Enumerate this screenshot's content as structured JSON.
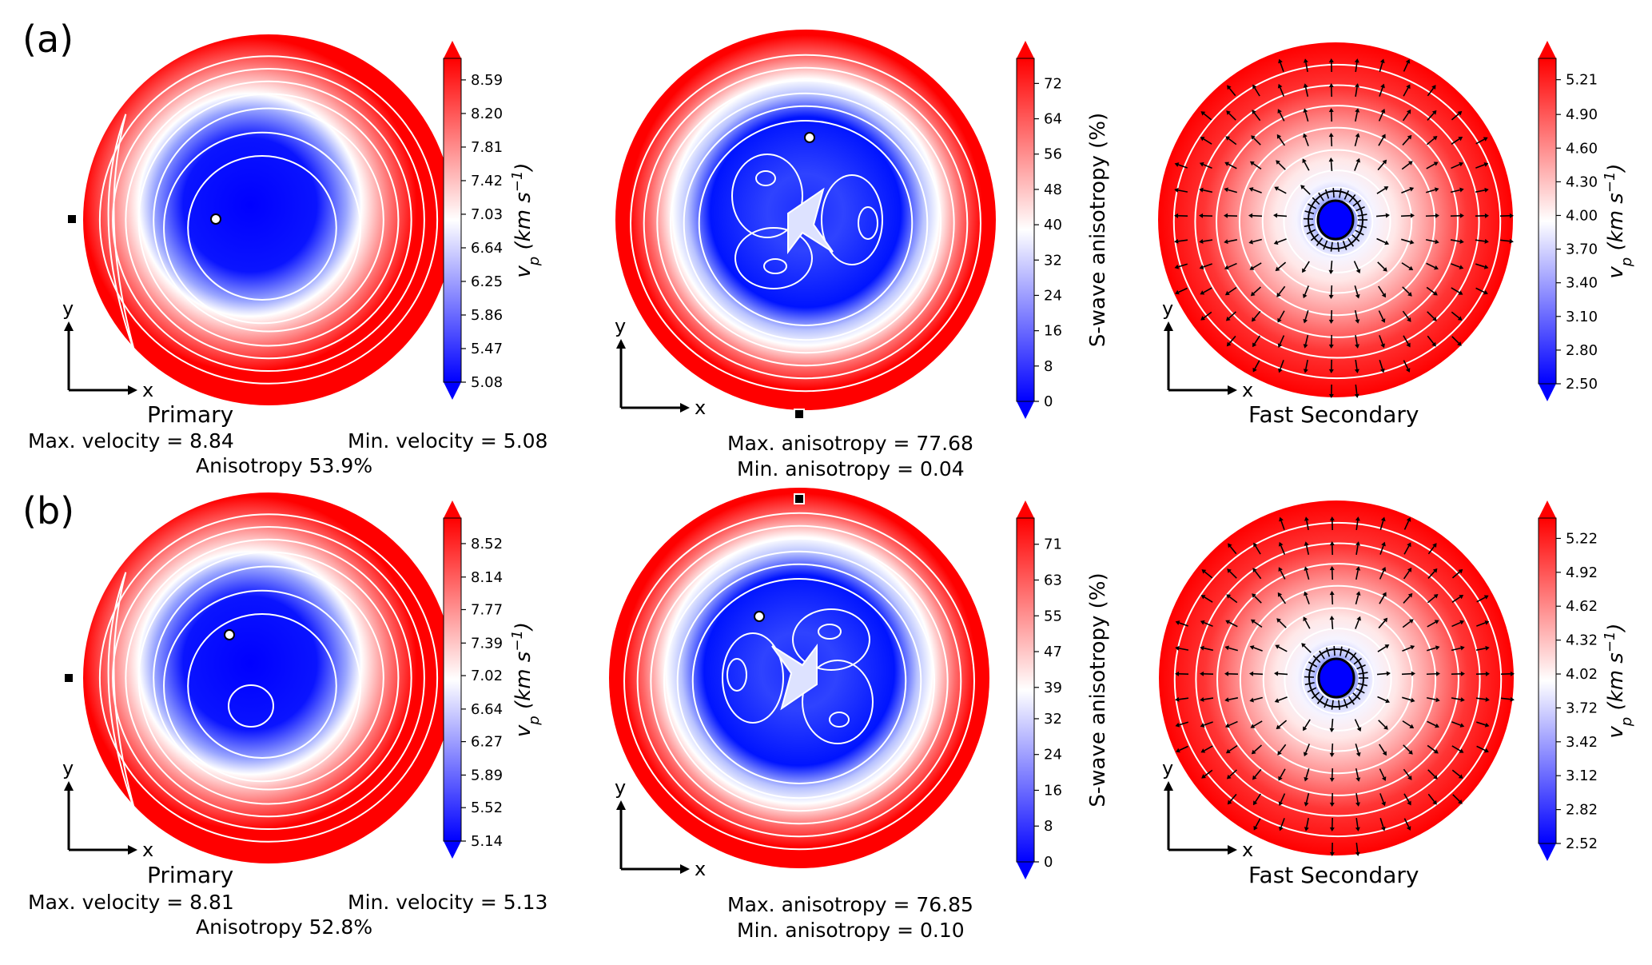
{
  "panels": [
    {
      "label": "(a)",
      "primary": {
        "title": "Primary",
        "max_text": "Max. velocity = 8.84",
        "min_text": "Min. velocity = 5.08",
        "aniso_text": "Anisotropy 53.9%"
      },
      "swave": {
        "max_text": "Max. anisotropy = 77.68",
        "min_text": "Min. anisotropy = 0.04"
      },
      "fast": {
        "title": "Fast Secondary"
      }
    },
    {
      "label": "(b)",
      "primary": {
        "title": "Primary",
        "max_text": "Max. velocity = 8.81",
        "min_text": "Min. velocity = 5.13",
        "aniso_text": "Anisotropy 52.8%"
      },
      "swave": {
        "max_text": "Max. anisotropy = 76.85",
        "min_text": "Min. anisotropy = 0.10"
      },
      "fast": {
        "title": "Fast Secondary"
      }
    }
  ],
  "axes_labels": {
    "x": "x",
    "y": "y"
  },
  "colors": {
    "low": "#0000ff",
    "mid": "#ffffff",
    "high": "#ff0000",
    "contour": "#ffffff",
    "arrow": "#000000"
  },
  "chart_data": [
    {
      "type": "heatmap",
      "panel": "(a)",
      "name": "Primary",
      "projection": "pole figure",
      "max_velocity": 8.84,
      "min_velocity": 5.08,
      "anisotropy_percent": 53.9,
      "colorbar": {
        "label": "v_p (km s^-1)",
        "range": [
          5.08,
          8.84
        ],
        "ticks": [
          "5.08",
          "5.47",
          "5.86",
          "6.25",
          "6.64",
          "7.03",
          "7.42",
          "7.81",
          "8.20",
          "8.59"
        ]
      }
    },
    {
      "type": "heatmap",
      "panel": "(a)",
      "name": "S-wave anisotropy",
      "projection": "pole figure",
      "max_anisotropy": 77.68,
      "min_anisotropy": 0.04,
      "colorbar": {
        "label": "S-wave anisotropy (%)",
        "range": [
          0,
          77.68
        ],
        "ticks": [
          "0",
          "8",
          "16",
          "24",
          "32",
          "40",
          "48",
          "56",
          "64",
          "72"
        ]
      }
    },
    {
      "type": "heatmap",
      "panel": "(a)",
      "name": "Fast Secondary",
      "projection": "pole figure",
      "polarization_arrows": true,
      "colorbar": {
        "label": "v_p (km s^-1)",
        "range": [
          2.5,
          5.4
        ],
        "ticks": [
          "2.50",
          "2.80",
          "3.10",
          "3.40",
          "3.70",
          "4.00",
          "4.30",
          "4.60",
          "4.90",
          "5.21"
        ]
      }
    },
    {
      "type": "heatmap",
      "panel": "(b)",
      "name": "Primary",
      "projection": "pole figure",
      "max_velocity": 8.81,
      "min_velocity": 5.13,
      "anisotropy_percent": 52.8,
      "colorbar": {
        "label": "v_p (km s^-1)",
        "range": [
          5.14,
          8.81
        ],
        "ticks": [
          "5.14",
          "5.52",
          "5.89",
          "6.27",
          "6.64",
          "7.02",
          "7.39",
          "7.77",
          "8.14",
          "8.52"
        ]
      }
    },
    {
      "type": "heatmap",
      "panel": "(b)",
      "name": "S-wave anisotropy",
      "projection": "pole figure",
      "max_anisotropy": 76.85,
      "min_anisotropy": 0.1,
      "colorbar": {
        "label": "S-wave anisotropy (%)",
        "range": [
          0,
          76.85
        ],
        "ticks": [
          "0",
          "8",
          "16",
          "24",
          "32",
          "39",
          "47",
          "55",
          "63",
          "71"
        ]
      }
    },
    {
      "type": "heatmap",
      "panel": "(b)",
      "name": "Fast Secondary",
      "projection": "pole figure",
      "polarization_arrows": true,
      "colorbar": {
        "label": "v_p (km s^-1)",
        "range": [
          2.52,
          5.4
        ],
        "ticks": [
          "2.52",
          "2.82",
          "3.12",
          "3.42",
          "3.72",
          "4.02",
          "4.32",
          "4.62",
          "4.92",
          "5.22"
        ]
      }
    }
  ]
}
